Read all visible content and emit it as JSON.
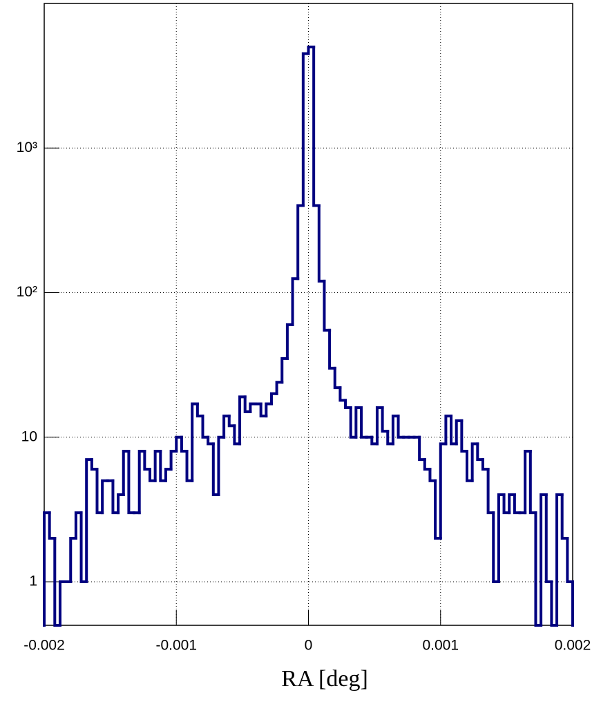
{
  "chart_data": {
    "type": "histogram",
    "x_label": "RA [deg]",
    "bins": [
      -0.002,
      -0.00196,
      -0.00192,
      -0.00188,
      -0.00184,
      -0.0018,
      -0.00176,
      -0.00172,
      -0.00168,
      -0.00164,
      -0.0016,
      -0.00156,
      -0.00152,
      -0.00148,
      -0.00144,
      -0.0014,
      -0.00136,
      -0.00132,
      -0.00128,
      -0.00124,
      -0.0012,
      -0.00116,
      -0.00112,
      -0.00108,
      -0.00104,
      -0.001,
      -0.00096,
      -0.00092,
      -0.00088,
      -0.00084,
      -0.0008,
      -0.00076,
      -0.00072,
      -0.00068,
      -0.00064,
      -0.0006,
      -0.00056,
      -0.00052,
      -0.00048,
      -0.00044,
      -0.0004,
      -0.00036,
      -0.00032,
      -0.00028,
      -0.00024,
      -0.0002,
      -0.00016,
      -0.00012,
      -8e-05,
      -4e-05,
      0,
      4e-05,
      8e-05,
      0.00012,
      0.00016,
      0.0002,
      0.00024,
      0.00028,
      0.00032,
      0.00036,
      0.0004,
      0.00044,
      0.00048,
      0.00052,
      0.00056,
      0.0006,
      0.00064,
      0.00068,
      0.00072,
      0.00076,
      0.0008,
      0.00084,
      0.00088,
      0.00092,
      0.00096,
      0.001,
      0.00104,
      0.00108,
      0.00112,
      0.00116,
      0.0012,
      0.00124,
      0.00128,
      0.00132,
      0.00136,
      0.0014,
      0.00144,
      0.00148,
      0.00152,
      0.00156,
      0.0016,
      0.00164,
      0.00168,
      0.00172,
      0.00176,
      0.0018,
      0.00184,
      0.00188,
      0.00192,
      0.00196,
      0.002
    ],
    "values": [
      3,
      2,
      0,
      1,
      1,
      2,
      3,
      1,
      7,
      6,
      3,
      5,
      5,
      3,
      4,
      8,
      3,
      3,
      8,
      6,
      5,
      8,
      5,
      6,
      8,
      10,
      8,
      5,
      17,
      14,
      10,
      9,
      4,
      10,
      14,
      12,
      9,
      19,
      15,
      17,
      17,
      14,
      17,
      20,
      24,
      35,
      60,
      125,
      400,
      4500,
      5000,
      400,
      120,
      55,
      30,
      22,
      18,
      16,
      10,
      16,
      10,
      10,
      9,
      16,
      11,
      9,
      14,
      10,
      10,
      10,
      10,
      7,
      6,
      5,
      2,
      9,
      14,
      9,
      13,
      8,
      5,
      9,
      7,
      6,
      3,
      1,
      4,
      3,
      4,
      3,
      3,
      8,
      3,
      0,
      4,
      1,
      0,
      4,
      2,
      1
    ],
    "color": "#000080",
    "xlim": [
      -0.002,
      0.002
    ],
    "xticks": [
      -0.002,
      -0.001,
      0,
      0.001,
      0.002
    ],
    "ylim": [
      0.5,
      10000
    ],
    "yticks": [
      1,
      10,
      {
        "value": 100,
        "label": "10²"
      },
      {
        "value": 1000,
        "label": "10³"
      }
    ],
    "log_y": true,
    "grid": true
  }
}
